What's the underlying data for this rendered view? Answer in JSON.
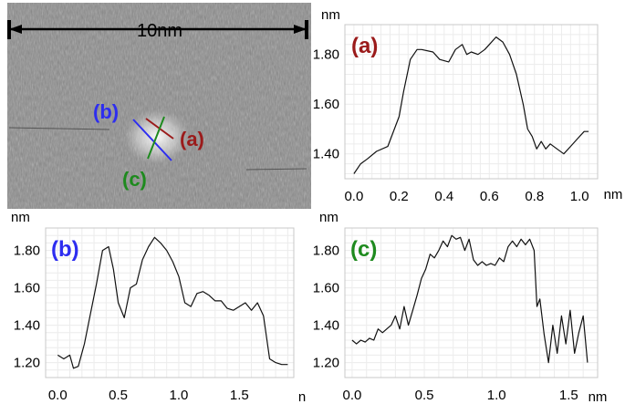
{
  "stm_image": {
    "scale_label": "10nm",
    "line_labels": [
      "(b)",
      "(a)",
      "(c)"
    ]
  },
  "colors": {
    "a": "#9b1b1b",
    "b": "#2d2df0",
    "c": "#1e8a1e"
  },
  "axis_unit": "nm",
  "chart_data": [
    {
      "type": "line",
      "panel": "(a)",
      "xlabel": "nm",
      "ylabel": "nm",
      "xlim": [
        -0.04,
        1.08
      ],
      "ylim": [
        1.3,
        1.92
      ],
      "xticks": [
        "0.0",
        "0.2",
        "0.4",
        "0.6",
        "0.8",
        "1.0"
      ],
      "yticks": [
        "1.40",
        "1.60",
        "1.80"
      ],
      "x": [
        0.0,
        0.03,
        0.06,
        0.1,
        0.15,
        0.2,
        0.22,
        0.25,
        0.28,
        0.3,
        0.35,
        0.38,
        0.42,
        0.45,
        0.48,
        0.5,
        0.52,
        0.55,
        0.58,
        0.6,
        0.63,
        0.66,
        0.69,
        0.72,
        0.75,
        0.77,
        0.79,
        0.81,
        0.83,
        0.85,
        0.87,
        0.9,
        0.93,
        0.96,
        0.99,
        1.02,
        1.04
      ],
      "y": [
        1.32,
        1.36,
        1.38,
        1.41,
        1.43,
        1.55,
        1.65,
        1.78,
        1.82,
        1.82,
        1.81,
        1.78,
        1.77,
        1.82,
        1.84,
        1.8,
        1.81,
        1.8,
        1.82,
        1.84,
        1.87,
        1.85,
        1.8,
        1.72,
        1.6,
        1.5,
        1.47,
        1.42,
        1.45,
        1.42,
        1.44,
        1.42,
        1.4,
        1.43,
        1.46,
        1.49,
        1.49
      ]
    },
    {
      "type": "line",
      "panel": "(b)",
      "xlabel": "n",
      "ylabel": "nm",
      "xlim": [
        -0.1,
        1.95
      ],
      "ylim": [
        1.12,
        1.92
      ],
      "xticks": [
        "0.0",
        "0.5",
        "1.0",
        "1.5"
      ],
      "yticks": [
        "1.20",
        "1.40",
        "1.60",
        "1.80"
      ],
      "x": [
        0.0,
        0.05,
        0.1,
        0.13,
        0.17,
        0.22,
        0.27,
        0.32,
        0.37,
        0.42,
        0.46,
        0.5,
        0.55,
        0.6,
        0.65,
        0.7,
        0.75,
        0.8,
        0.85,
        0.9,
        0.95,
        1.0,
        1.05,
        1.1,
        1.15,
        1.2,
        1.25,
        1.3,
        1.35,
        1.4,
        1.45,
        1.5,
        1.55,
        1.6,
        1.65,
        1.7,
        1.75,
        1.8,
        1.85,
        1.9
      ],
      "y": [
        1.24,
        1.22,
        1.24,
        1.17,
        1.18,
        1.3,
        1.46,
        1.62,
        1.8,
        1.82,
        1.7,
        1.52,
        1.44,
        1.6,
        1.62,
        1.75,
        1.82,
        1.87,
        1.84,
        1.8,
        1.74,
        1.66,
        1.52,
        1.5,
        1.57,
        1.58,
        1.56,
        1.53,
        1.53,
        1.49,
        1.48,
        1.5,
        1.52,
        1.48,
        1.52,
        1.45,
        1.22,
        1.2,
        1.19,
        1.19
      ]
    },
    {
      "type": "line",
      "panel": "(c)",
      "xlabel": "nm",
      "ylabel": "nm",
      "xlim": [
        -0.05,
        1.7
      ],
      "ylim": [
        1.12,
        1.92
      ],
      "xticks": [
        "0.0",
        "0.5",
        "1.0",
        "1.5"
      ],
      "yticks": [
        "1.20",
        "1.40",
        "1.60",
        "1.80"
      ],
      "x": [
        0.0,
        0.03,
        0.06,
        0.09,
        0.12,
        0.15,
        0.18,
        0.21,
        0.24,
        0.27,
        0.3,
        0.33,
        0.36,
        0.39,
        0.42,
        0.45,
        0.48,
        0.51,
        0.54,
        0.57,
        0.6,
        0.63,
        0.66,
        0.69,
        0.72,
        0.75,
        0.78,
        0.81,
        0.84,
        0.87,
        0.9,
        0.93,
        0.96,
        0.99,
        1.02,
        1.05,
        1.08,
        1.11,
        1.14,
        1.17,
        1.2,
        1.23,
        1.26,
        1.28,
        1.3,
        1.33,
        1.36,
        1.39,
        1.42,
        1.45,
        1.48,
        1.51,
        1.54,
        1.57,
        1.6,
        1.63
      ],
      "y": [
        1.32,
        1.3,
        1.32,
        1.31,
        1.33,
        1.32,
        1.38,
        1.36,
        1.38,
        1.4,
        1.45,
        1.38,
        1.5,
        1.4,
        1.48,
        1.56,
        1.65,
        1.7,
        1.78,
        1.76,
        1.8,
        1.85,
        1.82,
        1.88,
        1.86,
        1.87,
        1.8,
        1.86,
        1.75,
        1.72,
        1.74,
        1.72,
        1.73,
        1.72,
        1.76,
        1.74,
        1.82,
        1.85,
        1.82,
        1.86,
        1.83,
        1.86,
        1.8,
        1.5,
        1.54,
        1.35,
        1.2,
        1.4,
        1.25,
        1.45,
        1.3,
        1.48,
        1.25,
        1.36,
        1.45,
        1.2
      ]
    }
  ]
}
